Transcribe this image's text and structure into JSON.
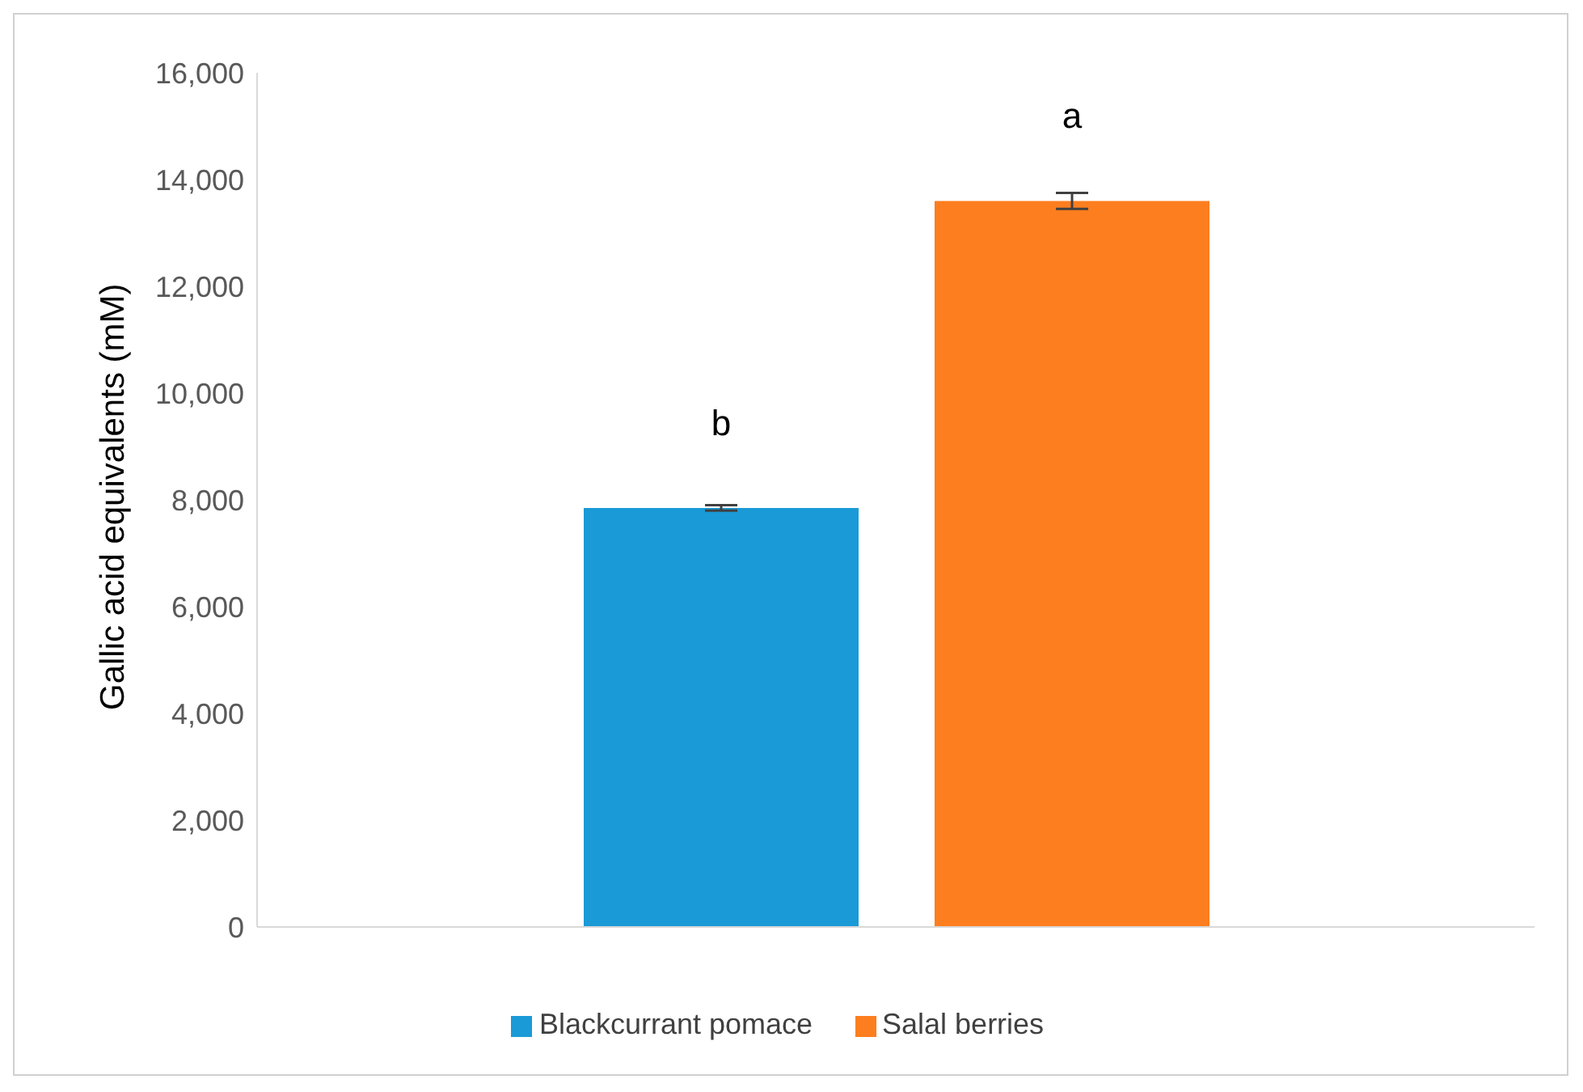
{
  "chart_data": {
    "type": "bar",
    "ylabel": "Gallic acid equivalents (mM)",
    "categories": [
      null
    ],
    "series": [
      {
        "name": "Blackcurrant pomace",
        "color": "#1a9ad6",
        "values": [
          7850
        ],
        "errors": [
          50
        ]
      },
      {
        "name": "Salal berries",
        "color": "#fd7e1f",
        "values": [
          13600
        ],
        "errors": [
          150
        ]
      }
    ],
    "annotations": [
      "b",
      "a"
    ],
    "ylim": [
      0,
      16000
    ],
    "yticks": [
      0,
      {
        "value": 2000,
        "label": "2,000"
      },
      {
        "value": 4000,
        "label": "4,000"
      },
      {
        "value": 6000,
        "label": "6,000"
      },
      {
        "value": 8000,
        "label": "8,000"
      },
      {
        "value": 10000,
        "label": "10,000"
      },
      {
        "value": 12000,
        "label": "12,000"
      },
      {
        "value": 14000,
        "label": "14,000"
      },
      {
        "value": 16000,
        "label": "16,000"
      }
    ],
    "grid": false,
    "legend": "bottom"
  }
}
